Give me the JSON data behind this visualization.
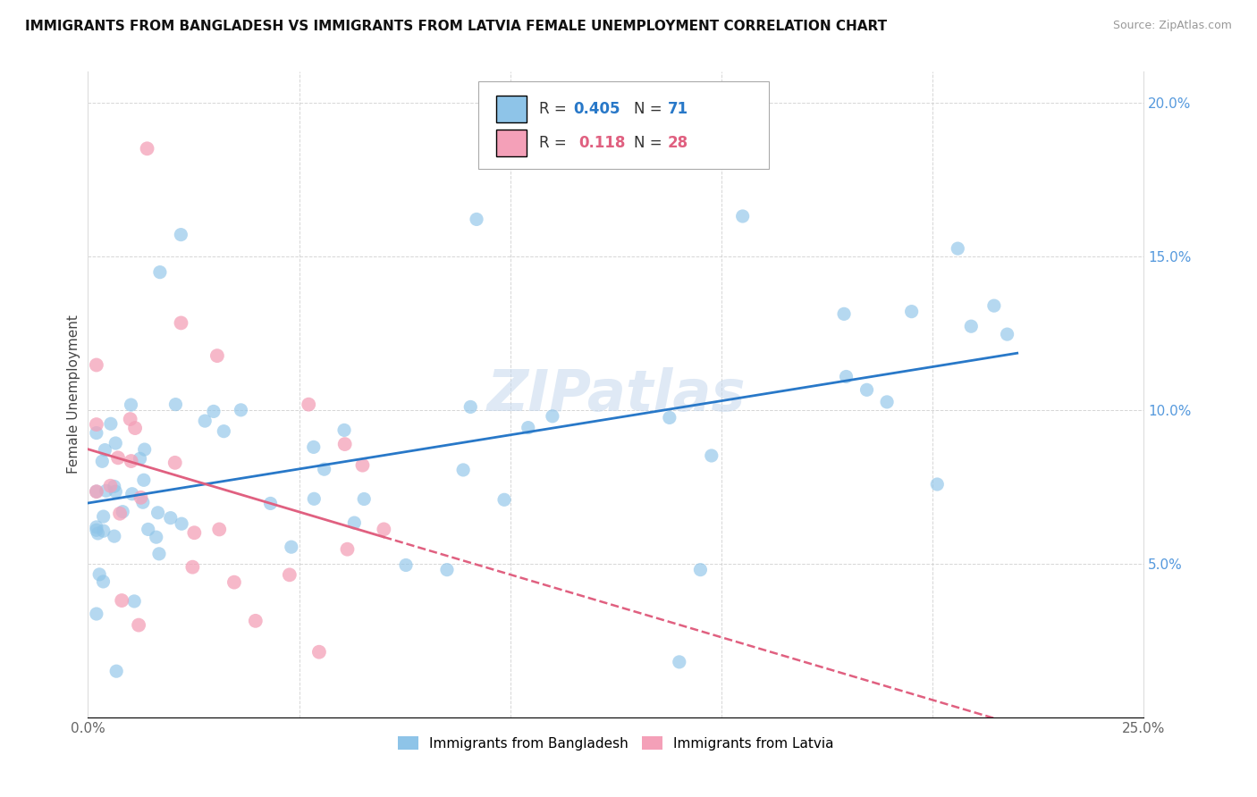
{
  "title": "IMMIGRANTS FROM BANGLADESH VS IMMIGRANTS FROM LATVIA FEMALE UNEMPLOYMENT CORRELATION CHART",
  "source": "Source: ZipAtlas.com",
  "ylabel": "Female Unemployment",
  "xlim": [
    0.0,
    0.25
  ],
  "ylim": [
    0.0,
    0.21
  ],
  "color_bangladesh": "#8ec4e8",
  "color_latvia": "#f4a0b8",
  "color_line_bangladesh": "#2878c8",
  "color_line_latvia": "#e06080",
  "watermark_color": "#c5d8ee",
  "bg_color": "#ffffff",
  "grid_color": "#cccccc",
  "right_axis_color": "#5599dd",
  "bangladesh_seed": 42,
  "latvia_seed": 99
}
